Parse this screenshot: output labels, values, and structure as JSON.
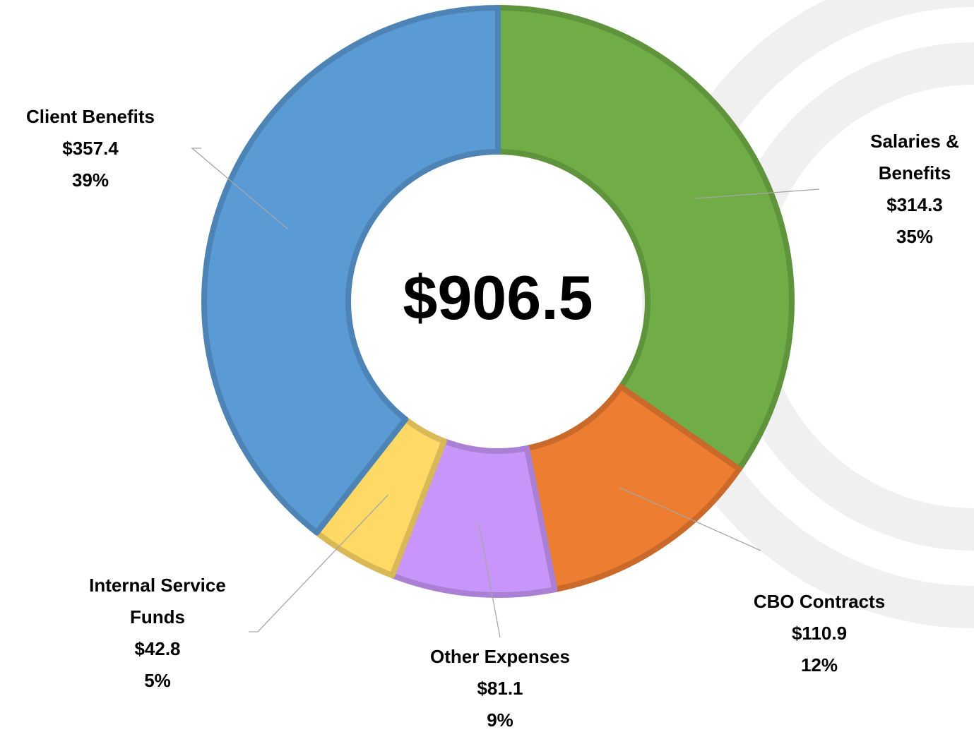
{
  "chart_data": {
    "type": "donut",
    "categories": [
      "Salaries & Benefits",
      "CBO Contracts",
      "Other Expenses",
      "Internal Service Funds",
      "Client Benefits"
    ],
    "values": [
      314.3,
      110.9,
      81.1,
      42.8,
      357.4
    ],
    "value_labels": [
      "$314.3",
      "$110.9",
      "$81.1",
      "$42.8",
      "$357.4"
    ],
    "percent_labels": [
      "35%",
      "12%",
      "9%",
      "5%",
      "39%"
    ],
    "colors": [
      "#70ad47",
      "#ed7d31",
      "#c896fa",
      "#ffd966",
      "#5b9bd5"
    ],
    "center_label": "$906.5"
  }
}
